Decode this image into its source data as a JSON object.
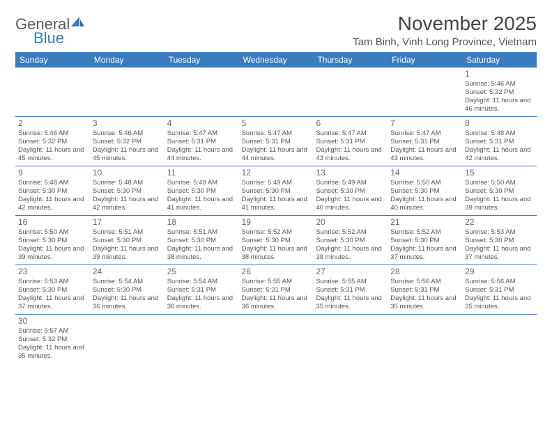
{
  "logo": {
    "general": "General",
    "blue": "Blue"
  },
  "header": {
    "title": "November 2025",
    "location": "Tam Binh, Vinh Long Province, Vietnam"
  },
  "colors": {
    "header_bg": "#3b7bbf",
    "header_text": "#ffffff",
    "row_border": "#3b7bbf",
    "body_text": "#555555"
  },
  "weekdays": [
    "Sunday",
    "Monday",
    "Tuesday",
    "Wednesday",
    "Thursday",
    "Friday",
    "Saturday"
  ],
  "weeks": [
    [
      null,
      null,
      null,
      null,
      null,
      null,
      {
        "n": "1",
        "sr": "5:46 AM",
        "ss": "5:32 PM",
        "dh": "11",
        "dm": "46"
      }
    ],
    [
      {
        "n": "2",
        "sr": "5:46 AM",
        "ss": "5:32 PM",
        "dh": "11",
        "dm": "45"
      },
      {
        "n": "3",
        "sr": "5:46 AM",
        "ss": "5:32 PM",
        "dh": "11",
        "dm": "45"
      },
      {
        "n": "4",
        "sr": "5:47 AM",
        "ss": "5:31 PM",
        "dh": "11",
        "dm": "44"
      },
      {
        "n": "5",
        "sr": "5:47 AM",
        "ss": "5:31 PM",
        "dh": "11",
        "dm": "44"
      },
      {
        "n": "6",
        "sr": "5:47 AM",
        "ss": "5:31 PM",
        "dh": "11",
        "dm": "43"
      },
      {
        "n": "7",
        "sr": "5:47 AM",
        "ss": "5:31 PM",
        "dh": "11",
        "dm": "43"
      },
      {
        "n": "8",
        "sr": "5:48 AM",
        "ss": "5:31 PM",
        "dh": "11",
        "dm": "42"
      }
    ],
    [
      {
        "n": "9",
        "sr": "5:48 AM",
        "ss": "5:30 PM",
        "dh": "11",
        "dm": "42"
      },
      {
        "n": "10",
        "sr": "5:48 AM",
        "ss": "5:30 PM",
        "dh": "11",
        "dm": "42"
      },
      {
        "n": "11",
        "sr": "5:49 AM",
        "ss": "5:30 PM",
        "dh": "11",
        "dm": "41"
      },
      {
        "n": "12",
        "sr": "5:49 AM",
        "ss": "5:30 PM",
        "dh": "11",
        "dm": "41"
      },
      {
        "n": "13",
        "sr": "5:49 AM",
        "ss": "5:30 PM",
        "dh": "11",
        "dm": "40"
      },
      {
        "n": "14",
        "sr": "5:50 AM",
        "ss": "5:30 PM",
        "dh": "11",
        "dm": "40"
      },
      {
        "n": "15",
        "sr": "5:50 AM",
        "ss": "5:30 PM",
        "dh": "11",
        "dm": "39"
      }
    ],
    [
      {
        "n": "16",
        "sr": "5:50 AM",
        "ss": "5:30 PM",
        "dh": "11",
        "dm": "39"
      },
      {
        "n": "17",
        "sr": "5:51 AM",
        "ss": "5:30 PM",
        "dh": "11",
        "dm": "39"
      },
      {
        "n": "18",
        "sr": "5:51 AM",
        "ss": "5:30 PM",
        "dh": "11",
        "dm": "38"
      },
      {
        "n": "19",
        "sr": "5:52 AM",
        "ss": "5:30 PM",
        "dh": "11",
        "dm": "38"
      },
      {
        "n": "20",
        "sr": "5:52 AM",
        "ss": "5:30 PM",
        "dh": "11",
        "dm": "38"
      },
      {
        "n": "21",
        "sr": "5:52 AM",
        "ss": "5:30 PM",
        "dh": "11",
        "dm": "37"
      },
      {
        "n": "22",
        "sr": "5:53 AM",
        "ss": "5:30 PM",
        "dh": "11",
        "dm": "37"
      }
    ],
    [
      {
        "n": "23",
        "sr": "5:53 AM",
        "ss": "5:30 PM",
        "dh": "11",
        "dm": "37"
      },
      {
        "n": "24",
        "sr": "5:54 AM",
        "ss": "5:30 PM",
        "dh": "11",
        "dm": "36"
      },
      {
        "n": "25",
        "sr": "5:54 AM",
        "ss": "5:31 PM",
        "dh": "11",
        "dm": "36"
      },
      {
        "n": "26",
        "sr": "5:55 AM",
        "ss": "5:31 PM",
        "dh": "11",
        "dm": "36"
      },
      {
        "n": "27",
        "sr": "5:55 AM",
        "ss": "5:31 PM",
        "dh": "11",
        "dm": "35"
      },
      {
        "n": "28",
        "sr": "5:56 AM",
        "ss": "5:31 PM",
        "dh": "11",
        "dm": "35"
      },
      {
        "n": "29",
        "sr": "5:56 AM",
        "ss": "5:31 PM",
        "dh": "11",
        "dm": "35"
      }
    ],
    [
      {
        "n": "30",
        "sr": "5:57 AM",
        "ss": "5:32 PM",
        "dh": "11",
        "dm": "35"
      },
      null,
      null,
      null,
      null,
      null,
      null
    ]
  ],
  "labels": {
    "sunrise": "Sunrise: ",
    "sunset": "Sunset: ",
    "daylight1": "Daylight: ",
    "daylight2": " hours and ",
    "daylight3": " minutes."
  }
}
